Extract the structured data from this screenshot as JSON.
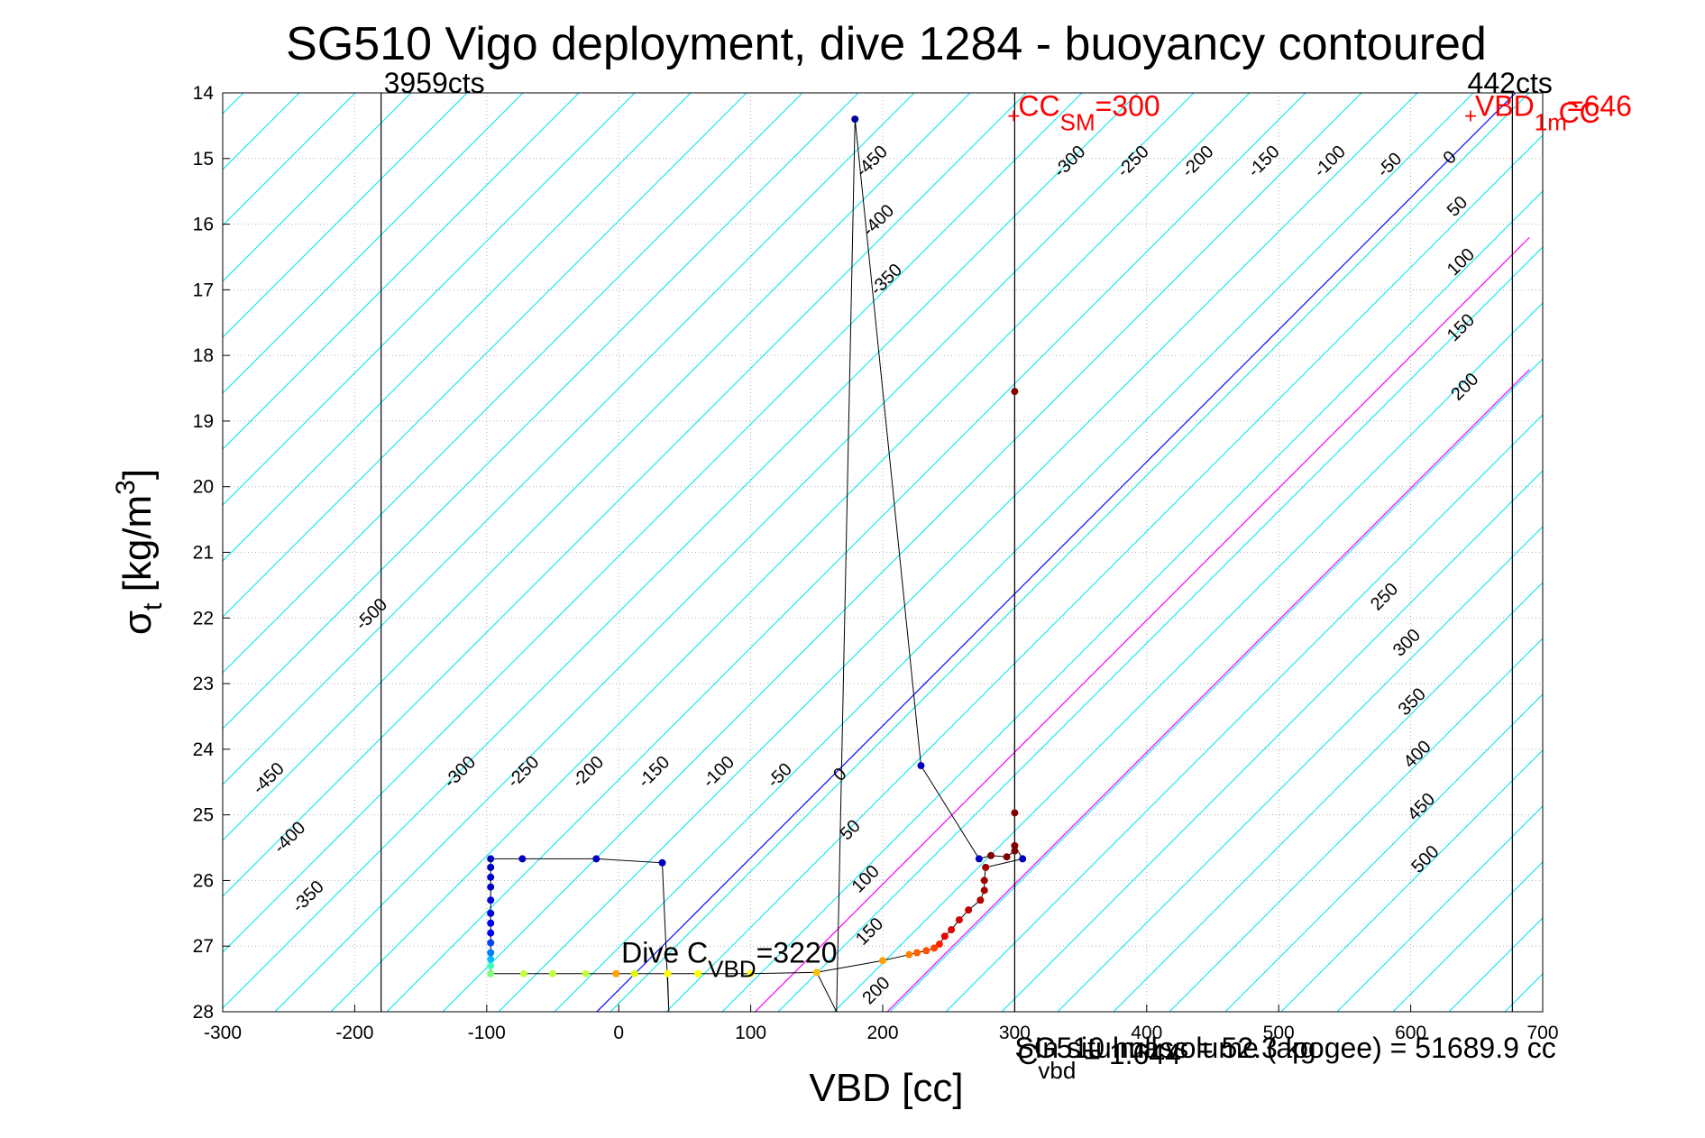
{
  "chart_data": {
    "type": "scatter",
    "title": "SG510 Vigo deployment, dive 1284 - buoyancy contoured",
    "xlabel": "VBD [cc]",
    "ylabel_main": "σ",
    "ylabel_sub": "t",
    "ylabel_units": " [kg/m",
    "ylabel_sup": "3",
    "ylabel_end": "]",
    "xlim": [
      -300,
      700
    ],
    "ylim": [
      14,
      28
    ],
    "y_reversed": true,
    "grid": true,
    "xticks": [
      -300,
      -200,
      -100,
      0,
      100,
      200,
      300,
      400,
      500,
      600,
      700
    ],
    "yticks": [
      14,
      15,
      16,
      17,
      18,
      19,
      20,
      21,
      22,
      23,
      24,
      25,
      26,
      27,
      28
    ],
    "contours": {
      "line_color": "#00e5ee",
      "levels": [
        -500,
        -450,
        -400,
        -350,
        -300,
        -250,
        -200,
        -150,
        -100,
        -50,
        0,
        50,
        100,
        150,
        200,
        250,
        300,
        350,
        400,
        450,
        500
      ],
      "labels_upper": [
        {
          "text": "-450",
          "x": 185,
          "y": 15.3
        },
        {
          "text": "-400",
          "x": 190,
          "y": 16.2
        },
        {
          "text": "-350",
          "x": 196,
          "y": 17.1
        },
        {
          "text": "-300",
          "x": 335,
          "y": 15.3
        },
        {
          "text": "-250",
          "x": 383,
          "y": 15.3
        },
        {
          "text": "-200",
          "x": 432,
          "y": 15.3
        },
        {
          "text": "-150",
          "x": 482,
          "y": 15.3
        },
        {
          "text": "-100",
          "x": 532,
          "y": 15.3
        },
        {
          "text": "-50",
          "x": 580,
          "y": 15.3
        },
        {
          "text": "0",
          "x": 630,
          "y": 15.1
        },
        {
          "text": "50",
          "x": 633,
          "y": 15.9
        },
        {
          "text": "100",
          "x": 633,
          "y": 16.8
        },
        {
          "text": "150",
          "x": 633,
          "y": 17.8
        },
        {
          "text": "200",
          "x": 636,
          "y": 18.7
        },
        {
          "text": "250",
          "x": 575,
          "y": 21.9
        },
        {
          "text": "300",
          "x": 592,
          "y": 22.6
        },
        {
          "text": "350",
          "x": 596,
          "y": 23.5
        },
        {
          "text": "400",
          "x": 600,
          "y": 24.3
        },
        {
          "text": "450",
          "x": 603,
          "y": 25.1
        },
        {
          "text": "500",
          "x": 606,
          "y": 25.9
        }
      ],
      "labels_lower": [
        {
          "text": "-500",
          "x": -194,
          "y": 22.2
        },
        {
          "text": "-450",
          "x": -272,
          "y": 24.7
        },
        {
          "text": "-400",
          "x": -256,
          "y": 25.6
        },
        {
          "text": "-350",
          "x": -242,
          "y": 26.5
        },
        {
          "text": "-300",
          "x": -127,
          "y": 24.6
        },
        {
          "text": "-250",
          "x": -79,
          "y": 24.6
        },
        {
          "text": "-200",
          "x": -30,
          "y": 24.6
        },
        {
          "text": "-150",
          "x": 20,
          "y": 24.6
        },
        {
          "text": "-100",
          "x": 69,
          "y": 24.6
        },
        {
          "text": "-50",
          "x": 118,
          "y": 24.6
        },
        {
          "text": "0",
          "x": 168,
          "y": 24.5
        },
        {
          "text": "50",
          "x": 173,
          "y": 25.4
        },
        {
          "text": "100",
          "x": 182,
          "y": 26.2
        },
        {
          "text": "150",
          "x": 185,
          "y": 27.0
        },
        {
          "text": "200",
          "x": 190,
          "y": 27.9
        }
      ]
    },
    "reference_lines": [
      {
        "kind": "vertical",
        "x": -180,
        "color": "#000000",
        "label": "3959cts",
        "label_x": -178,
        "label_y": 14.0
      },
      {
        "kind": "vertical",
        "x": 677,
        "color": "#000000",
        "label": "442cts",
        "label_x": 643,
        "label_y": 14.0
      },
      {
        "kind": "vertical",
        "x": 300,
        "color": "#000000"
      }
    ],
    "neutral_lines": [
      {
        "level": 0,
        "color": "#0000ff",
        "x0": -20,
        "x1": 690
      },
      {
        "level": 100,
        "color": "#ff00ff",
        "x0": 100,
        "x1": 690
      },
      {
        "level": 200,
        "color": "#ff00ff",
        "x0": 200,
        "x1": 690
      }
    ],
    "markers": [
      {
        "text": "CC",
        "sub": "SM",
        "text2": "=300",
        "x": 300,
        "y": 14.35,
        "color": "#ff0000"
      },
      {
        "text": "VBD",
        "sub": "1m",
        "text2": "=646",
        "x": 646,
        "y": 14.35,
        "color": "#ff0000"
      }
    ],
    "edge_labels": [
      {
        "text": "CC",
        "x": 712,
        "y": 14.45,
        "color": "#ff0000"
      }
    ],
    "annotations": [
      {
        "text": "Dive C",
        "sub": "VBD",
        "text2": "=3220",
        "x": 2,
        "y": 27.25
      },
      {
        "text": "SG510 hull volume (apogee) = 51689.9 cc",
        "x": 300,
        "y": 28.7,
        "overlap": true
      },
      {
        "text": "In situ mass = 52.3 kg",
        "x": 315,
        "y": 28.7,
        "overlap": true
      },
      {
        "text": "C",
        "sub": "vbd",
        "text2": " = 1.644",
        "x": 302,
        "y": 28.8,
        "overlap": true
      }
    ],
    "trajectory": {
      "line_color": "#000000",
      "points": [
        {
          "x": -97,
          "y": 27.42,
          "c": "#80ff80"
        },
        {
          "x": -97,
          "y": 27.3,
          "c": "#40ffc0"
        },
        {
          "x": -97,
          "y": 27.2,
          "c": "#00c0ff"
        },
        {
          "x": -97,
          "y": 27.1,
          "c": "#0080ff"
        },
        {
          "x": -97,
          "y": 26.95,
          "c": "#0040ff"
        },
        {
          "x": -97,
          "y": 26.8,
          "c": "#0000ff"
        },
        {
          "x": -97,
          "y": 26.65,
          "c": "#0000ff"
        },
        {
          "x": -97,
          "y": 26.5,
          "c": "#0000e0"
        },
        {
          "x": -97,
          "y": 26.3,
          "c": "#0000e0"
        },
        {
          "x": -97,
          "y": 26.1,
          "c": "#0000d0"
        },
        {
          "x": -97,
          "y": 25.95,
          "c": "#0000d0"
        },
        {
          "x": -97,
          "y": 25.8,
          "c": "#0000c0"
        },
        {
          "x": -97,
          "y": 25.67,
          "c": "#0000c0"
        },
        {
          "x": -73,
          "y": 25.67,
          "c": "#0000c0"
        },
        {
          "x": -17,
          "y": 25.67,
          "c": "#0000c0"
        },
        {
          "x": 33,
          "y": 25.73,
          "c": "#0000c0"
        },
        {
          "x": 38,
          "y": 28.0,
          "c": null
        },
        {
          "x": 37,
          "y": 27.42,
          "c": "#ffff00"
        },
        {
          "x": 12,
          "y": 27.42,
          "c": "#e0ff00"
        },
        {
          "x": -25,
          "y": 27.42,
          "c": "#c0ff40"
        },
        {
          "x": -50,
          "y": 27.42,
          "c": "#c0ff40"
        },
        {
          "x": -72,
          "y": 27.42,
          "c": "#c0ff40"
        },
        {
          "x": -97,
          "y": 27.42,
          "c": "#80ff80"
        },
        {
          "x": -2,
          "y": 27.42,
          "c": "#ffa000"
        },
        {
          "x": 60,
          "y": 27.42,
          "c": "#ffff00"
        },
        {
          "x": 100,
          "y": 27.42,
          "c": "#ffff00"
        },
        {
          "x": 150,
          "y": 27.4,
          "c": "#ffc000"
        },
        {
          "x": 165,
          "y": 28.0,
          "c": null
        },
        {
          "x": 179,
          "y": 14.4,
          "c": "#0000a0"
        },
        {
          "x": 229,
          "y": 24.25,
          "c": "#0000c0"
        },
        {
          "x": 273,
          "y": 25.67,
          "c": "#0000c0"
        },
        {
          "x": 282,
          "y": 25.62,
          "c": "#800000"
        },
        {
          "x": 294,
          "y": 25.64,
          "c": "#800000"
        },
        {
          "x": 300,
          "y": 25.55,
          "c": "#800000"
        },
        {
          "x": 300,
          "y": 24.97,
          "c": "#800000"
        },
        {
          "x": 300,
          "y": 18.55,
          "c": "#800000"
        },
        {
          "x": 300,
          "y": 25.47,
          "c": "#800000"
        },
        {
          "x": 306,
          "y": 25.67,
          "c": "#0000c0"
        },
        {
          "x": 278,
          "y": 25.8,
          "c": "#a00000"
        },
        {
          "x": 277,
          "y": 26.0,
          "c": "#a00000"
        },
        {
          "x": 277,
          "y": 26.15,
          "c": "#a00000"
        },
        {
          "x": 274,
          "y": 26.3,
          "c": "#b00000"
        },
        {
          "x": 265,
          "y": 26.45,
          "c": "#c00000"
        },
        {
          "x": 258,
          "y": 26.6,
          "c": "#d00000"
        },
        {
          "x": 252,
          "y": 26.75,
          "c": "#e00000"
        },
        {
          "x": 247,
          "y": 26.85,
          "c": "#f00000"
        },
        {
          "x": 243,
          "y": 26.97,
          "c": "#ff2000"
        },
        {
          "x": 239,
          "y": 27.03,
          "c": "#ff4000"
        },
        {
          "x": 233,
          "y": 27.07,
          "c": "#ff5000"
        },
        {
          "x": 226,
          "y": 27.1,
          "c": "#ff6000"
        },
        {
          "x": 220,
          "y": 27.13,
          "c": "#ff8000"
        },
        {
          "x": 200,
          "y": 27.22,
          "c": "#ffa000"
        },
        {
          "x": 150,
          "y": 27.4,
          "c": "#ffc000"
        }
      ]
    }
  }
}
